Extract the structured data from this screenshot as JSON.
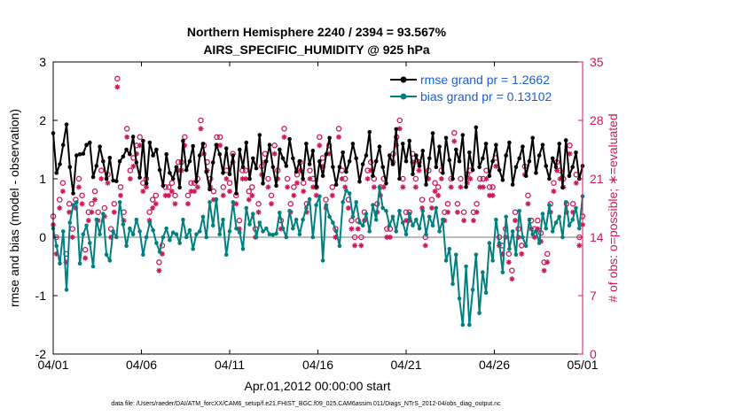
{
  "chart_data": {
    "type": "line",
    "title": "Northern Hemisphere 2240 / 2394 = 93.567%",
    "subtitle": "AIRS_SPECIFIC_HUMIDITY @ 925 hPa",
    "xlabel": "Apr.01,2012 00:00:00 start",
    "ylabel_left": "rmse and bias (model - observation)",
    "ylabel_right": "# of obs: o=possible; ∗=evaluated",
    "ylim_left": [
      -2,
      3
    ],
    "ylim_right": [
      0,
      35
    ],
    "xlim_days": [
      0,
      30
    ],
    "x_ticks": [
      "04/01",
      "04/06",
      "04/11",
      "04/16",
      "04/21",
      "04/26",
      "05/01"
    ],
    "y_left_ticks": [
      "-2",
      "-1",
      "0",
      "1",
      "2",
      "3"
    ],
    "y_right_ticks": [
      "0",
      "7",
      "14",
      "21",
      "28",
      "35"
    ],
    "footnote": "data file: /Users/raeder/DAI/ATM_forcXX/CAM6_setup/f.e21.FHIST_BGC.f09_025.CAM6assim.011/Diags_NTrS_2012-04/obs_diag_output.nc",
    "colors": {
      "rmse": "#000000",
      "bias": "#008080",
      "obs": "#cc1a5c",
      "legend_text": "#1a5fd6"
    },
    "series": [
      {
        "name": "rmse grand pr = 1.2662",
        "axis": "left",
        "values": [
          1.78,
          1.1,
          1.25,
          1.58,
          1.93,
          1.2,
          0.75,
          1.4,
          1.42,
          1.43,
          1.58,
          1.62,
          1.03,
          1.22,
          1.55,
          1.3,
          1.0,
          1.36,
          0.97,
          0.96,
          1.3,
          1.38,
          1.5,
          1.42,
          1.72,
          1.28,
          1.02,
          1.65,
          0.92,
          1.62,
          1.4,
          1.5,
          1.15,
          0.88,
          1.42,
          1.1,
          1.0,
          1.2,
          0.85,
          1.65,
          1.15,
          1.3,
          1.56,
          0.95,
          1.4,
          1.6,
          1.12,
          0.82,
          1.28,
          1.58,
          1.42,
          1.1,
          1.52,
          1.08,
          1.4,
          0.75,
          1.5,
          1.2,
          1.62,
          1.0,
          1.35,
          1.18,
          1.75,
          0.92,
          1.3,
          1.58,
          1.2,
          0.88,
          1.5,
          1.35,
          1.22,
          1.68,
          1.35,
          1.12,
          1.3,
          1.0,
          1.6,
          1.25,
          1.48,
          0.86,
          1.3,
          1.05,
          1.42,
          1.7,
          1.2,
          0.9,
          1.2,
          1.45,
          1.12,
          1.3,
          1.6,
          1.35,
          0.95,
          1.25,
          1.4,
          1.8,
          1.05,
          1.3,
          1.55,
          1.2,
          0.92,
          1.4,
          1.25,
          1.85,
          1.0,
          1.6,
          1.3,
          1.65,
          1.08,
          1.4,
          1.22,
          1.48,
          0.9,
          1.35,
          1.78,
          1.2,
          1.55,
          1.1,
          1.7,
          1.32,
          1.0,
          1.5,
          1.3,
          1.75,
          0.86,
          1.45,
          1.15,
          1.88,
          1.2,
          1.35,
          1.6,
          1.05,
          1.3,
          1.58,
          1.15,
          0.98,
          1.4,
          1.62,
          0.9,
          1.2,
          1.35,
          1.55,
          1.05,
          1.3,
          1.7,
          1.1,
          1.4,
          1.58,
          1.22,
          1.0,
          1.35,
          1.2,
          1.6,
          0.85,
          1.66,
          1.05,
          1.2,
          1.45,
          1.0,
          1.22
        ]
      },
      {
        "name": "bias grand pr = 0.13102",
        "axis": "left",
        "values": [
          0.15,
          -0.15,
          -0.45,
          0.1,
          -0.9,
          0.25,
          0.55,
          0.6,
          -0.45,
          0.05,
          0.2,
          -0.1,
          -0.5,
          0.3,
          0.05,
          0.4,
          -0.3,
          -0.4,
          0.1,
          0.0,
          0.6,
          0.22,
          -0.15,
          0.15,
          0.05,
          0.3,
          0.1,
          -0.3,
          0.0,
          0.25,
          0.12,
          -0.1,
          -0.25,
          0.0,
          0.15,
          -0.05,
          0.08,
          0.05,
          -0.1,
          0.3,
          0.0,
          0.12,
          -0.2,
          0.05,
          0.1,
          0.35,
          0.0,
          0.6,
          0.2,
          0.65,
          0.05,
          0.3,
          -0.3,
          0.1,
          0.6,
          0.15,
          0.08,
          -0.2,
          0.5,
          0.22,
          0.4,
          0.0,
          0.25,
          0.1,
          0.15,
          0.05,
          0.04,
          0.06,
          0.42,
          0.15,
          0.0,
          0.45,
          0.15,
          0.3,
          0.05,
          0.3,
          0.5,
          0.65,
          0.0,
          0.55,
          0.7,
          -0.4,
          0.55,
          0.35,
          0.25,
          0.1,
          -0.15,
          0.6,
          0.8,
          0.75,
          0.35,
          0.6,
          0.25,
          0.2,
          0.4,
          0.1,
          0.55,
          0.3,
          0.85,
          0.5,
          0.45,
          0.2,
          0.35,
          0.1,
          0.45,
          0.25,
          0.05,
          0.4,
          0.2,
          0.3,
          0.15,
          0.45,
          0.05,
          0.35,
          0.2,
          0.5,
          0.1,
          0.3,
          -0.4,
          -0.2,
          -0.8,
          -0.3,
          -1.05,
          -1.5,
          -0.5,
          -1.5,
          -0.9,
          -0.3,
          -1.3,
          -0.6,
          -0.95,
          -0.1,
          -0.4,
          0.3,
          -0.1,
          -0.6,
          0.35,
          -0.2,
          0.1,
          -0.3,
          0.45,
          0.0,
          -0.15,
          0.3,
          0.05,
          0.1,
          -0.1,
          0.4,
          0.15,
          0.55,
          0.1,
          0.25,
          0.35,
          0.0,
          0.6,
          0.2,
          0.3,
          0.5,
          0.15,
          0.7
        ]
      },
      {
        "name": "obs possible",
        "axis": "right",
        "marker": "circle",
        "values": [
          16.5,
          14,
          18.5,
          20.5,
          12,
          18,
          15,
          18.5,
          21,
          19,
          12.5,
          17,
          18,
          19.5,
          17,
          22,
          17.5,
          21.5,
          15,
          18,
          33,
          20,
          17,
          27,
          22,
          23.5,
          25,
          26,
          20.5,
          21,
          17,
          18.5,
          19,
          11,
          13,
          20,
          20,
          20.5,
          19,
          23,
          23,
          26,
          19,
          20.5,
          20.5,
          21,
          28,
          25,
          23,
          21,
          19.5,
          26,
          26,
          20,
          22,
          20.5,
          24,
          19,
          16,
          22,
          22,
          19.5,
          20,
          15,
          18,
          22.5,
          24,
          21,
          19,
          25,
          22,
          16,
          27,
          21,
          18,
          20,
          21.5,
          23,
          20.5,
          18,
          22,
          21,
          20,
          26,
          23.5,
          18.5,
          25,
          20,
          15,
          27,
          22,
          21,
          18.5,
          16,
          14,
          16,
          14,
          17,
          22,
          23,
          21,
          18,
          20,
          21,
          15,
          15,
          24,
          26,
          28,
          21,
          17,
          17,
          24,
          21,
          23,
          18.5,
          14,
          22,
          18.5,
          20.5,
          20,
          22,
          17,
          18,
          21,
          26.5,
          18,
          21,
          17,
          21.5,
          22,
          17,
          18,
          21,
          21,
          22,
          20,
          20,
          23.5,
          14,
          13,
          15,
          12,
          10,
          17,
          15,
          13,
          22.5,
          19,
          16,
          15,
          16,
          14.5,
          11,
          12,
          18,
          20.5,
          23,
          22,
          21,
          18,
          25,
          18,
          21.5,
          14,
          16.5
        ]
      },
      {
        "name": "obs evaluated",
        "axis": "right",
        "marker": "asterisk",
        "values": [
          15.5,
          12,
          17.5,
          19.5,
          11,
          17,
          14,
          17.5,
          20,
          18,
          11.5,
          16,
          17,
          18.5,
          16,
          21,
          16.5,
          20.5,
          14,
          17,
          32,
          19,
          16,
          26,
          21,
          22.5,
          24,
          25,
          19.5,
          20,
          16,
          17.5,
          18,
          10,
          12,
          19,
          19,
          19.5,
          18,
          22,
          22,
          25,
          18,
          19.5,
          19.5,
          20,
          27,
          24,
          22,
          20,
          18.5,
          25,
          25,
          19,
          21,
          19.5,
          23,
          18,
          15,
          21,
          21,
          18.5,
          19,
          14,
          17,
          21.5,
          23,
          20,
          18,
          24,
          21,
          15,
          26,
          20,
          17,
          19,
          20.5,
          22,
          19.5,
          17,
          21,
          20,
          19,
          25,
          22.5,
          17.5,
          24,
          19,
          14,
          26,
          21,
          20,
          17.5,
          15,
          13,
          15,
          13,
          16,
          21,
          22,
          20,
          17,
          19,
          20,
          14,
          14,
          23,
          25,
          27,
          20,
          16,
          16,
          23,
          20,
          22,
          17.5,
          13,
          21,
          17.5,
          19.5,
          19,
          21,
          16,
          17,
          20,
          25.5,
          17,
          20,
          16,
          20.5,
          21,
          16,
          17,
          20,
          20,
          21,
          19,
          19,
          22.5,
          13,
          12,
          14,
          11,
          9,
          16,
          14,
          12,
          21.5,
          18,
          15,
          14,
          15,
          13.5,
          10,
          11,
          17,
          19.5,
          22,
          21,
          20,
          17,
          24,
          17,
          20.5,
          13,
          15.5
        ]
      }
    ]
  }
}
